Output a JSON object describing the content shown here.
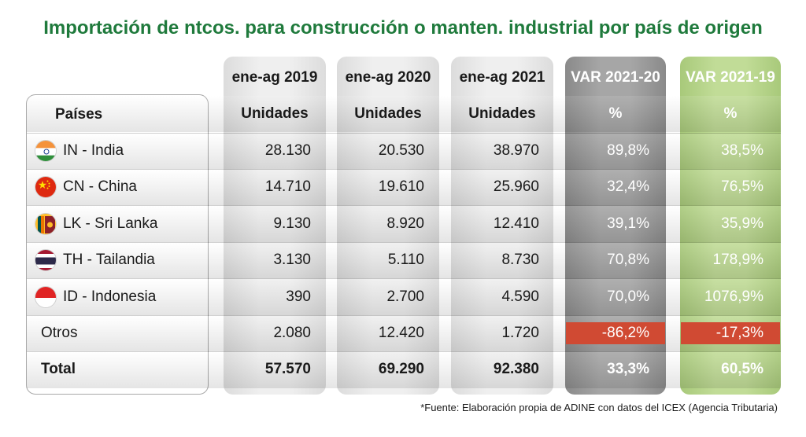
{
  "title": "Importación de ntcos. para construcción o manten. industrial por país de origen",
  "footnote": "*Fuente: Elaboración propia de ADINE con datos del ICEX (Agencia Tributaria)",
  "colors": {
    "title": "#1f7a3c",
    "negative": "#d04a33",
    "var20_column": "#a6a6a6",
    "var19_column": "#c1dc97"
  },
  "chart_data": {
    "type": "table",
    "columns": [
      {
        "period": "ene-ag 2019",
        "unit": "Unidades"
      },
      {
        "period": "ene-ag 2020",
        "unit": "Unidades"
      },
      {
        "period": "ene-ag 2021",
        "unit": "Unidades"
      },
      {
        "period": "VAR 2021-20",
        "unit": "%"
      },
      {
        "period": "VAR 2021-19",
        "unit": "%"
      }
    ],
    "row_header": "Países",
    "rows": [
      {
        "country": "IN - India",
        "flag": "india-flag-icon",
        "values": [
          "28.130",
          "20.530",
          "38.970",
          "89,8%",
          "38,5%"
        ]
      },
      {
        "country": "CN - China",
        "flag": "china-flag-icon",
        "values": [
          "14.710",
          "19.610",
          "25.960",
          "32,4%",
          "76,5%"
        ]
      },
      {
        "country": "LK - Sri Lanka",
        "flag": "sri-lanka-flag-icon",
        "values": [
          "9.130",
          "8.920",
          "12.410",
          "39,1%",
          "35,9%"
        ]
      },
      {
        "country": "TH - Tailandia",
        "flag": "thailand-flag-icon",
        "values": [
          "3.130",
          "5.110",
          "8.730",
          "70,8%",
          "178,9%"
        ]
      },
      {
        "country": "ID - Indonesia",
        "flag": "indonesia-flag-icon",
        "values": [
          "390",
          "2.700",
          "4.590",
          "70,0%",
          "1076,9%"
        ]
      },
      {
        "country": "Otros",
        "flag": "",
        "values": [
          "2.080",
          "12.420",
          "1.720",
          "-86,2%",
          "-17,3%"
        ]
      }
    ],
    "total": {
      "label": "Total",
      "values": [
        "57.570",
        "69.290",
        "92.380",
        "33,3%",
        "60,5%"
      ]
    }
  }
}
